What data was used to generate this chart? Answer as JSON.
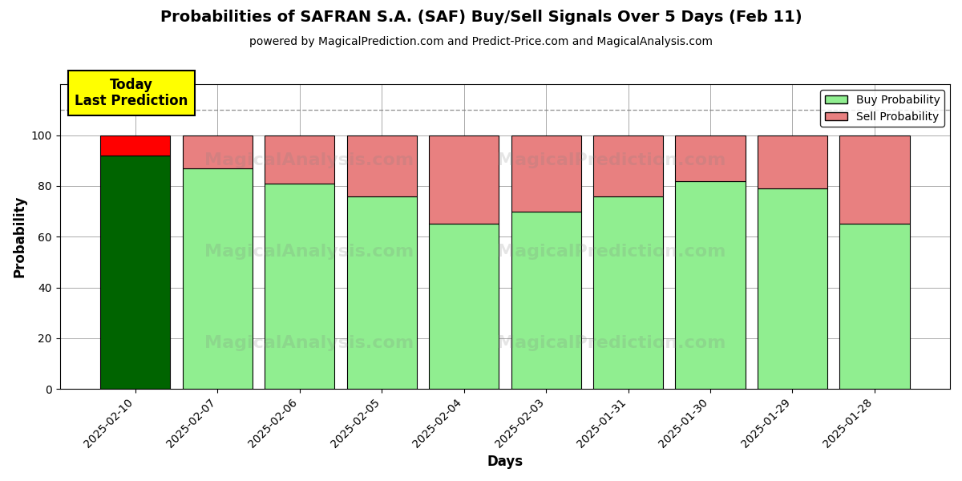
{
  "title": "Probabilities of SAFRAN S.A. (SAF) Buy/Sell Signals Over 5 Days (Feb 11)",
  "subtitle": "powered by MagicalPrediction.com and Predict-Price.com and MagicalAnalysis.com",
  "xlabel": "Days",
  "ylabel": "Probability",
  "categories": [
    "2025-02-10",
    "2025-02-07",
    "2025-02-06",
    "2025-02-05",
    "2025-02-04",
    "2025-02-03",
    "2025-01-31",
    "2025-01-30",
    "2025-01-29",
    "2025-01-28"
  ],
  "buy_values": [
    92,
    87,
    81,
    76,
    65,
    70,
    76,
    82,
    79,
    65
  ],
  "sell_values": [
    8,
    13,
    19,
    24,
    35,
    30,
    24,
    18,
    21,
    35
  ],
  "today_buy_color": "#006400",
  "today_sell_color": "#FF0000",
  "buy_color": "#90EE90",
  "sell_color": "#E88080",
  "bar_edgecolor": "black",
  "today_annotation": "Today\nLast Prediction",
  "annotation_bg_color": "#FFFF00",
  "dashed_line_y": 110,
  "ylim": [
    0,
    120
  ],
  "yticks": [
    0,
    20,
    40,
    60,
    80,
    100
  ],
  "legend_buy_label": "Buy Probability",
  "legend_sell_label": "Sell Probability",
  "fig_width": 12,
  "fig_height": 6,
  "background_color": "#ffffff",
  "grid_color": "#aaaaaa"
}
